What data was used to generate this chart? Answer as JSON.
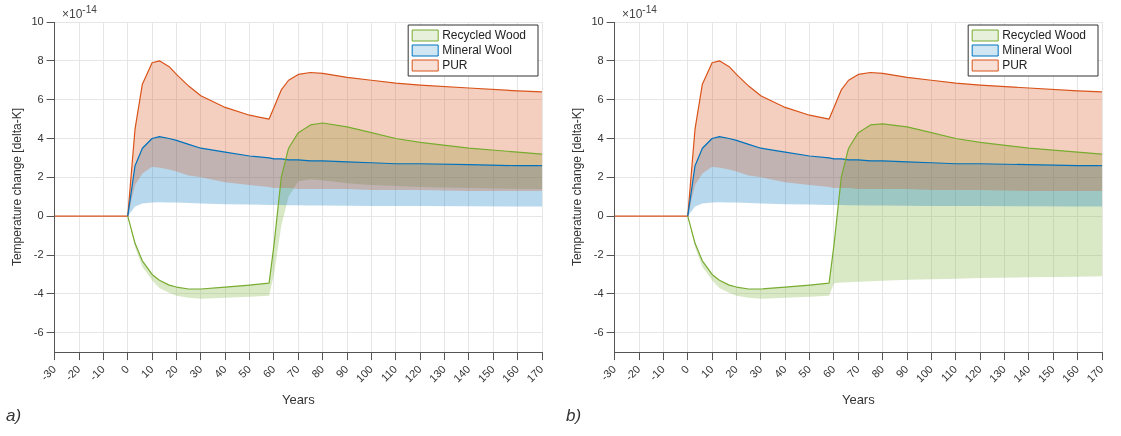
{
  "chart_data": [
    {
      "type": "line",
      "xlabel": "Years",
      "ylabel": "Temperature change [delta-K]",
      "annotations": [
        "×10$^{-14}$",
        "a)"
      ],
      "x": [
        -30,
        -10,
        0,
        3,
        6,
        10,
        13,
        17,
        20,
        25,
        30,
        40,
        50,
        58,
        60,
        63,
        66,
        70,
        75,
        80,
        90,
        100,
        110,
        120,
        140,
        160,
        170
      ],
      "xlim": [
        -30,
        170
      ],
      "xticks": [
        -30,
        -20,
        -10,
        0,
        10,
        20,
        30,
        40,
        50,
        60,
        70,
        80,
        90,
        100,
        110,
        120,
        130,
        140,
        150,
        160,
        170
      ],
      "ylim": [
        -7,
        10
      ],
      "yticks": [
        -6,
        -4,
        -2,
        0,
        2,
        4,
        6,
        8,
        10
      ],
      "grid": true,
      "legend": "top right",
      "series": [
        {
          "name": "Recycled Wood",
          "color": "#77ac30",
          "values": [
            null,
            null,
            0,
            -1.4,
            -2.3,
            -3.0,
            -3.3,
            -3.55,
            -3.65,
            -3.75,
            -3.75,
            -3.65,
            -3.55,
            -3.45,
            -1.5,
            2.0,
            3.5,
            4.3,
            4.7,
            4.8,
            4.6,
            4.3,
            4.0,
            3.8,
            3.5,
            3.3,
            3.2
          ],
          "upper": [
            null,
            null,
            0,
            -1.4,
            -2.3,
            -3.0,
            -3.3,
            -3.55,
            -3.65,
            -3.75,
            -3.75,
            -3.65,
            -3.55,
            -3.45,
            -1.5,
            2.0,
            3.5,
            4.3,
            4.7,
            4.8,
            4.6,
            4.3,
            4.0,
            3.8,
            3.5,
            3.3,
            3.2
          ],
          "lower": [
            null,
            null,
            0,
            -1.6,
            -2.6,
            -3.3,
            -3.7,
            -3.95,
            -4.1,
            -4.2,
            -4.25,
            -4.2,
            -4.15,
            -4.1,
            -3.0,
            -0.5,
            1.0,
            1.8,
            1.9,
            1.85,
            1.7,
            1.6,
            1.55,
            1.5,
            1.45,
            1.4,
            1.4
          ]
        },
        {
          "name": "Mineral Wool",
          "color": "#0072bd",
          "values": [
            null,
            null,
            0,
            2.6,
            3.5,
            4.0,
            4.1,
            4.0,
            3.9,
            3.7,
            3.5,
            3.3,
            3.1,
            3.0,
            2.95,
            2.95,
            2.9,
            2.9,
            2.85,
            2.85,
            2.8,
            2.75,
            2.7,
            2.7,
            2.65,
            2.6,
            2.6
          ],
          "upper": [
            null,
            null,
            0,
            2.6,
            3.5,
            4.0,
            4.1,
            4.0,
            3.9,
            3.7,
            3.5,
            3.3,
            3.1,
            3.0,
            2.95,
            2.95,
            2.9,
            2.9,
            2.85,
            2.85,
            2.8,
            2.75,
            2.7,
            2.7,
            2.65,
            2.6,
            2.6
          ],
          "lower": [
            null,
            null,
            0,
            0.5,
            0.65,
            0.7,
            0.72,
            0.7,
            0.7,
            0.68,
            0.65,
            0.62,
            0.6,
            0.58,
            0.57,
            0.57,
            0.56,
            0.56,
            0.55,
            0.55,
            0.54,
            0.53,
            0.52,
            0.52,
            0.51,
            0.5,
            0.5
          ]
        },
        {
          "name": "PUR",
          "color": "#d95319",
          "values": [
            0,
            0,
            0,
            4.5,
            6.8,
            7.9,
            8.0,
            7.7,
            7.3,
            6.7,
            6.2,
            5.6,
            5.2,
            5.0,
            5.6,
            6.5,
            7.0,
            7.3,
            7.4,
            7.35,
            7.15,
            7.0,
            6.85,
            6.75,
            6.6,
            6.45,
            6.4
          ],
          "upper": [
            0,
            0,
            0,
            4.5,
            6.8,
            7.9,
            8.0,
            7.7,
            7.3,
            6.7,
            6.2,
            5.6,
            5.2,
            5.0,
            5.6,
            6.5,
            7.0,
            7.3,
            7.4,
            7.35,
            7.15,
            7.0,
            6.85,
            6.75,
            6.6,
            6.45,
            6.4
          ],
          "lower": [
            0,
            0,
            0,
            1.6,
            2.2,
            2.55,
            2.5,
            2.4,
            2.3,
            2.1,
            2.0,
            1.75,
            1.6,
            1.5,
            1.45,
            1.45,
            1.45,
            1.4,
            1.4,
            1.4,
            1.4,
            1.35,
            1.35,
            1.35,
            1.3,
            1.3,
            1.3
          ]
        }
      ]
    },
    {
      "type": "line",
      "xlabel": "Years",
      "ylabel": "Temperature change [delta-K]",
      "annotations": [
        "×10$^{-14}$",
        "b)"
      ],
      "x": [
        -30,
        -10,
        0,
        3,
        6,
        10,
        13,
        17,
        20,
        25,
        30,
        40,
        50,
        58,
        60,
        63,
        66,
        70,
        75,
        80,
        90,
        100,
        110,
        120,
        140,
        160,
        170
      ],
      "xlim": [
        -30,
        170
      ],
      "xticks": [
        -30,
        -20,
        -10,
        0,
        10,
        20,
        30,
        40,
        50,
        60,
        70,
        80,
        90,
        100,
        110,
        120,
        130,
        140,
        150,
        160,
        170
      ],
      "ylim": [
        -7,
        10
      ],
      "yticks": [
        -6,
        -4,
        -2,
        0,
        2,
        4,
        6,
        8,
        10
      ],
      "grid": true,
      "legend": "top right",
      "series": [
        {
          "name": "Recycled Wood",
          "color": "#77ac30",
          "values": [
            null,
            null,
            0,
            -1.4,
            -2.3,
            -3.0,
            -3.3,
            -3.55,
            -3.65,
            -3.75,
            -3.75,
            -3.65,
            -3.55,
            -3.45,
            -1.5,
            2.0,
            3.5,
            4.3,
            4.7,
            4.75,
            4.6,
            4.3,
            4.0,
            3.8,
            3.5,
            3.3,
            3.2
          ],
          "upper": [
            null,
            null,
            0,
            -1.4,
            -2.3,
            -3.0,
            -3.3,
            -3.55,
            -3.65,
            -3.75,
            -3.75,
            -3.65,
            -3.55,
            -3.45,
            -1.5,
            2.0,
            3.5,
            4.3,
            4.7,
            4.75,
            4.6,
            4.3,
            4.0,
            3.8,
            3.5,
            3.3,
            3.2
          ],
          "lower": [
            null,
            null,
            0,
            -1.6,
            -2.6,
            -3.3,
            -3.7,
            -3.95,
            -4.1,
            -4.2,
            -4.25,
            -4.2,
            -4.15,
            -4.1,
            -3.45,
            -3.42,
            -3.4,
            -3.38,
            -3.35,
            -3.32,
            -3.28,
            -3.25,
            -3.22,
            -3.18,
            -3.15,
            -3.12,
            -3.1
          ]
        },
        {
          "name": "Mineral Wool",
          "color": "#0072bd",
          "values": [
            null,
            null,
            0,
            2.6,
            3.5,
            4.0,
            4.1,
            4.0,
            3.9,
            3.7,
            3.5,
            3.3,
            3.1,
            3.0,
            2.95,
            2.95,
            2.9,
            2.9,
            2.85,
            2.85,
            2.8,
            2.75,
            2.7,
            2.7,
            2.65,
            2.6,
            2.6
          ],
          "upper": [
            null,
            null,
            0,
            2.6,
            3.5,
            4.0,
            4.1,
            4.0,
            3.9,
            3.7,
            3.5,
            3.3,
            3.1,
            3.0,
            2.95,
            2.95,
            2.9,
            2.9,
            2.85,
            2.85,
            2.8,
            2.75,
            2.7,
            2.7,
            2.65,
            2.6,
            2.6
          ],
          "lower": [
            null,
            null,
            0,
            0.5,
            0.65,
            0.7,
            0.72,
            0.7,
            0.7,
            0.68,
            0.65,
            0.62,
            0.6,
            0.58,
            0.57,
            0.57,
            0.56,
            0.56,
            0.55,
            0.55,
            0.54,
            0.53,
            0.52,
            0.52,
            0.51,
            0.5,
            0.5
          ]
        },
        {
          "name": "PUR",
          "color": "#d95319",
          "values": [
            0,
            0,
            0,
            4.5,
            6.8,
            7.9,
            8.0,
            7.7,
            7.3,
            6.7,
            6.2,
            5.6,
            5.2,
            5.0,
            5.6,
            6.5,
            7.0,
            7.3,
            7.4,
            7.35,
            7.15,
            7.0,
            6.85,
            6.75,
            6.6,
            6.45,
            6.4
          ],
          "upper": [
            0,
            0,
            0,
            4.5,
            6.8,
            7.9,
            8.0,
            7.7,
            7.3,
            6.7,
            6.2,
            5.6,
            5.2,
            5.0,
            5.6,
            6.5,
            7.0,
            7.3,
            7.4,
            7.35,
            7.15,
            7.0,
            6.85,
            6.75,
            6.6,
            6.45,
            6.4
          ],
          "lower": [
            0,
            0,
            0,
            1.6,
            2.2,
            2.55,
            2.5,
            2.4,
            2.3,
            2.1,
            2.0,
            1.75,
            1.6,
            1.5,
            1.45,
            1.45,
            1.45,
            1.4,
            1.4,
            1.4,
            1.4,
            1.35,
            1.35,
            1.35,
            1.3,
            1.3,
            1.3
          ]
        }
      ]
    }
  ]
}
